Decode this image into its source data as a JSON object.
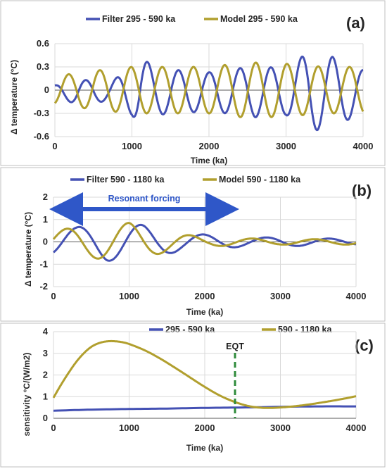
{
  "chart_data": [
    {
      "panel": "(a)",
      "type": "line",
      "xlabel": "Time (ka)",
      "ylabel": "Δ temperature (°C)",
      "xlim": [
        0,
        4000
      ],
      "ylim": [
        -0.6,
        0.6
      ],
      "xticks": [
        "0",
        "1000",
        "2000",
        "3000",
        "4000"
      ],
      "yticks": [
        "-0.6",
        "-0.3",
        "0",
        "0.3",
        "0.6"
      ],
      "grid": true,
      "legend": "top",
      "series": [
        {
          "name": "Filter 295 - 590 ka",
          "color": "#4451b4",
          "period": 400,
          "phase": 1.5,
          "amp": [
            [
              0,
              0.08
            ],
            [
              300,
              0.16
            ],
            [
              700,
              0.12
            ],
            [
              1000,
              0.3
            ],
            [
              1100,
              0.47
            ],
            [
              1300,
              0.3
            ],
            [
              2000,
              0.25
            ],
            [
              2600,
              0.33
            ],
            [
              3000,
              0.3
            ],
            [
              3300,
              0.52
            ],
            [
              3600,
              0.45
            ],
            [
              4000,
              0.28
            ]
          ],
          "offset": -0.02
        },
        {
          "name": "Model 295 - 590 ka",
          "color": "#b19f2e",
          "period": 405,
          "phase": -1.2,
          "amp": [
            [
              0,
              0.18
            ],
            [
              500,
              0.25
            ],
            [
              1000,
              0.3
            ],
            [
              2000,
              0.3
            ],
            [
              2500,
              0.36
            ],
            [
              3000,
              0.34
            ],
            [
              3500,
              0.3
            ],
            [
              4000,
              0.3
            ]
          ],
          "offset": 0
        }
      ]
    },
    {
      "panel": "(b)",
      "type": "line",
      "xlabel": "Time (ka)",
      "ylabel": "Δ temperature (°C)",
      "xlim": [
        0,
        4000
      ],
      "ylim": [
        -2,
        2
      ],
      "xticks": [
        "0",
        "1000",
        "2000",
        "3000",
        "4000"
      ],
      "yticks": [
        "-2",
        "-1",
        "0",
        "1",
        "2"
      ],
      "grid": true,
      "legend": "top",
      "annotation": "Resonant forcing",
      "annotation_x": [
        0,
        2400
      ],
      "series": [
        {
          "name": "Filter 590 - 1180 ka",
          "color": "#4451b4",
          "period": 830,
          "phase": -0.9,
          "amp": [
            [
              0,
              0.6
            ],
            [
              300,
              0.65
            ],
            [
              700,
              0.85
            ],
            [
              1200,
              0.75
            ],
            [
              1700,
              0.4
            ],
            [
              2200,
              0.28
            ],
            [
              2600,
              0.2
            ],
            [
              3000,
              0.2
            ],
            [
              4000,
              0.12
            ]
          ],
          "offset": 0
        },
        {
          "name": "Model 590 - 1180 ka",
          "color": "#b19f2e",
          "period": 820,
          "phase": 0.25,
          "amp": [
            [
              0,
              0.5
            ],
            [
              400,
              0.7
            ],
            [
              1000,
              0.85
            ],
            [
              1500,
              0.45
            ],
            [
              2000,
              0.2
            ],
            [
              3000,
              0.12
            ],
            [
              4000,
              0.12
            ]
          ],
          "offset": 0
        }
      ]
    },
    {
      "panel": "(c)",
      "type": "line",
      "xlabel": "Time (ka)",
      "ylabel": "sensitivity °C/(W/m2)",
      "xlim": [
        0,
        4000
      ],
      "ylim": [
        0,
        4
      ],
      "xticks": [
        "0",
        "1000",
        "2000",
        "3000",
        "4000"
      ],
      "yticks": [
        "0",
        "1",
        "2",
        "3",
        "4"
      ],
      "grid": true,
      "legend": "top",
      "marker_label": "EQT",
      "marker_x": 2400,
      "series": [
        {
          "name": "295 - 590 ka",
          "color": "#4451b4",
          "x": [
            0,
            500,
            1000,
            1500,
            2000,
            2500,
            3000,
            3500,
            4000
          ],
          "y": [
            0.35,
            0.4,
            0.43,
            0.45,
            0.48,
            0.5,
            0.53,
            0.55,
            0.55
          ]
        },
        {
          "name": "590 - 1180 ka",
          "color": "#b19f2e",
          "x": [
            0,
            100,
            200,
            300,
            400,
            500,
            600,
            700,
            800,
            900,
            1000,
            1200,
            1400,
            1600,
            1800,
            2000,
            2200,
            2400,
            2600,
            2800,
            3000,
            3200,
            3400,
            3600,
            3800,
            4000
          ],
          "y": [
            0.95,
            1.55,
            2.1,
            2.6,
            3.0,
            3.3,
            3.47,
            3.55,
            3.56,
            3.52,
            3.43,
            3.15,
            2.78,
            2.35,
            1.9,
            1.45,
            1.05,
            0.75,
            0.55,
            0.48,
            0.5,
            0.56,
            0.65,
            0.76,
            0.88,
            1.02
          ]
        }
      ]
    }
  ]
}
